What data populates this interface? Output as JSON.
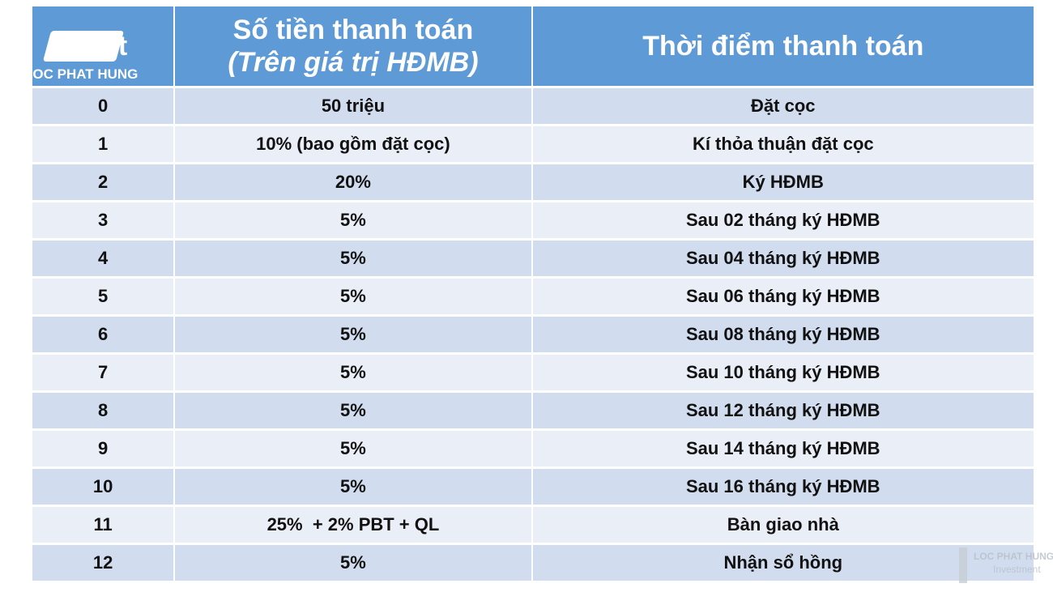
{
  "logo": {
    "text": "LOC PHAT HUNG"
  },
  "watermark": {
    "brand": "LOC PHAT HUNG",
    "sub": "Investment"
  },
  "table": {
    "header": {
      "col0": "Đợt",
      "col1_line1": "Số tiền thanh toán",
      "col1_line2": "(Trên giá trị HĐMB)",
      "col2": "Thời điểm thanh toán"
    },
    "rows": [
      [
        0,
        "50 triệu",
        "Đặt cọc"
      ],
      [
        1,
        "10% (bao gồm đặt cọc)",
        "Kí thỏa thuận đặt cọc"
      ],
      [
        2,
        "20%",
        "Ký HĐMB"
      ],
      [
        3,
        "5%",
        "Sau 02 tháng ký HĐMB"
      ],
      [
        4,
        "5%",
        "Sau 04 tháng ký HĐMB"
      ],
      [
        5,
        "5%",
        "Sau 06 tháng ký HĐMB"
      ],
      [
        6,
        "5%",
        "Sau 08 tháng ký HĐMB"
      ],
      [
        7,
        "5%",
        "Sau 10 tháng ký HĐMB"
      ],
      [
        8,
        "5%",
        "Sau 12 tháng ký HĐMB"
      ],
      [
        9,
        "5%",
        "Sau 14 tháng ký HĐMB"
      ],
      [
        10,
        "5%",
        "Sau 16 tháng ký HĐMB"
      ],
      [
        11,
        "25%  + 2% PBT + QL",
        "Bàn giao nhà"
      ],
      [
        12,
        "5%",
        "Nhận sổ hồng"
      ]
    ]
  }
}
